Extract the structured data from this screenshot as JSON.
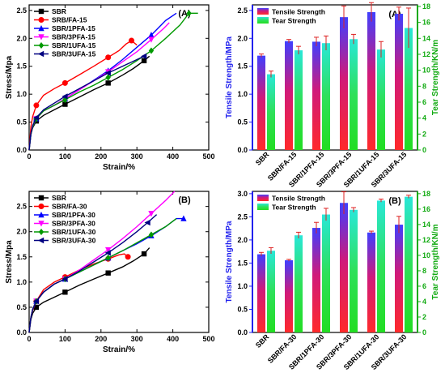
{
  "chart_data": [
    {
      "id": "A-stress-strain",
      "type": "line",
      "panel_label": "(A)",
      "xlabel": "Strain/%",
      "ylabel": "Stress/Mpa",
      "xlim": [
        0,
        500
      ],
      "ylim": [
        0,
        2.6
      ],
      "xticks": [
        "0",
        "100",
        "200",
        "300",
        "400",
        "500"
      ],
      "yticks": [
        "0.0",
        "0.5",
        "1.0",
        "1.5",
        "2.0",
        "2.5"
      ],
      "legend_position": "top-left",
      "series": [
        {
          "name": "SBR",
          "color": "#000000",
          "marker": "square",
          "x": [
            0,
            5,
            10,
            20,
            40,
            70,
            100,
            140,
            180,
            220,
            260,
            290,
            320,
            335
          ],
          "y": [
            0,
            0.28,
            0.4,
            0.52,
            0.62,
            0.72,
            0.82,
            0.95,
            1.08,
            1.2,
            1.34,
            1.46,
            1.6,
            1.68
          ]
        },
        {
          "name": "SRB/FA-15",
          "color": "#ff0000",
          "marker": "circle",
          "x": [
            0,
            5,
            10,
            20,
            40,
            70,
            100,
            140,
            180,
            220,
            250,
            270,
            285,
            300
          ],
          "y": [
            0,
            0.42,
            0.6,
            0.8,
            0.98,
            1.1,
            1.2,
            1.35,
            1.5,
            1.66,
            1.78,
            1.9,
            1.96,
            1.88
          ]
        },
        {
          "name": "SBR/1PFA-15",
          "color": "#0000ff",
          "marker": "triangle-up",
          "x": [
            0,
            5,
            10,
            20,
            40,
            70,
            100,
            140,
            180,
            220,
            260,
            300,
            340,
            380,
            410
          ],
          "y": [
            0,
            0.28,
            0.42,
            0.56,
            0.7,
            0.8,
            0.92,
            1.08,
            1.25,
            1.42,
            1.62,
            1.84,
            2.06,
            2.32,
            2.45
          ]
        },
        {
          "name": "SBR/3PFA-15",
          "color": "#ff00ff",
          "marker": "triangle-down",
          "x": [
            0,
            5,
            10,
            20,
            40,
            70,
            100,
            140,
            180,
            220,
            260,
            300,
            340,
            375,
            390
          ],
          "y": [
            0,
            0.28,
            0.42,
            0.56,
            0.7,
            0.8,
            0.92,
            1.08,
            1.24,
            1.4,
            1.58,
            1.76,
            1.98,
            2.18,
            2.28
          ]
        },
        {
          "name": "SBR/1UFA-15",
          "color": "#009900",
          "marker": "diamond",
          "x": [
            0,
            5,
            10,
            20,
            40,
            70,
            100,
            140,
            180,
            220,
            260,
            300,
            340,
            380,
            420,
            445,
            470
          ],
          "y": [
            0,
            0.28,
            0.42,
            0.56,
            0.7,
            0.8,
            0.9,
            1.04,
            1.16,
            1.3,
            1.44,
            1.6,
            1.78,
            2.0,
            2.24,
            2.45,
            2.45
          ]
        },
        {
          "name": "SBR/3UFA-15",
          "color": "#000080",
          "marker": "left-triangle",
          "x": [
            0,
            5,
            10,
            20,
            40,
            70,
            100,
            140,
            180,
            220,
            260,
            300,
            320
          ],
          "y": [
            0,
            0.3,
            0.44,
            0.58,
            0.72,
            0.84,
            0.96,
            1.1,
            1.24,
            1.38,
            1.5,
            1.62,
            1.68
          ]
        }
      ]
    },
    {
      "id": "A-bars",
      "type": "bar",
      "panel_label": "(A)",
      "categories": [
        "SBR",
        "SBR/FA-15",
        "SBR/1PFA-15",
        "SBR/3PFA-15",
        "SBR/1UFA-15",
        "SBR/3UFA-15"
      ],
      "ylabel": "Tensile Strength/MPa",
      "y2label": "Tear Strength/KN/m",
      "ylim": [
        0,
        2.6
      ],
      "y2lim": [
        0,
        18.2
      ],
      "yticks": [
        "0.0",
        "0.5",
        "1.0",
        "1.5",
        "2.0",
        "2.5"
      ],
      "y2ticks": [
        "0",
        "2",
        "4",
        "6",
        "8",
        "10",
        "12",
        "14",
        "16",
        "18"
      ],
      "legend_position": "top-left",
      "series": [
        {
          "name": "Tensile Strength",
          "axis": "left",
          "color": "#ff2a2a",
          "values": [
            1.69,
            1.95,
            1.94,
            2.38,
            2.47,
            2.44
          ],
          "errors": [
            0.03,
            0.03,
            0.08,
            0.2,
            0.17,
            0.12
          ]
        },
        {
          "name": "Tear Strength",
          "axis": "right",
          "color": "#22dd22",
          "values": [
            9.5,
            12.5,
            13.4,
            13.9,
            12.6,
            15.3
          ],
          "errors": [
            0.4,
            0.5,
            0.9,
            0.6,
            1.0,
            2.5
          ]
        }
      ]
    },
    {
      "id": "B-stress-strain",
      "type": "line",
      "panel_label": "(B)",
      "xlabel": "Strain/%",
      "ylabel": "Stress/Mpa",
      "xlim": [
        0,
        500
      ],
      "ylim": [
        0,
        2.8
      ],
      "xticks": [
        "0",
        "100",
        "200",
        "300",
        "400",
        "500"
      ],
      "yticks": [
        "0.0",
        "0.5",
        "1.0",
        "1.5",
        "2.0",
        "2.5"
      ],
      "legend_position": "top-left",
      "series": [
        {
          "name": "SBR",
          "color": "#000000",
          "marker": "square",
          "x": [
            0,
            5,
            10,
            20,
            40,
            70,
            100,
            140,
            180,
            220,
            260,
            290,
            320,
            335
          ],
          "y": [
            0,
            0.26,
            0.38,
            0.5,
            0.6,
            0.7,
            0.8,
            0.94,
            1.06,
            1.18,
            1.3,
            1.42,
            1.56,
            1.68
          ]
        },
        {
          "name": "SBR/FA-30",
          "color": "#ff0000",
          "marker": "circle",
          "x": [
            0,
            5,
            10,
            20,
            40,
            70,
            100,
            140,
            180,
            220,
            250,
            265,
            275
          ],
          "y": [
            0,
            0.3,
            0.44,
            0.62,
            0.85,
            1.0,
            1.1,
            1.24,
            1.36,
            1.46,
            1.54,
            1.56,
            1.5
          ]
        },
        {
          "name": "SBR/1PFA-30",
          "color": "#0000ff",
          "marker": "triangle-up",
          "x": [
            0,
            5,
            10,
            20,
            40,
            70,
            100,
            140,
            180,
            220,
            260,
            300,
            340,
            380,
            410,
            430
          ],
          "y": [
            0,
            0.3,
            0.46,
            0.62,
            0.8,
            0.96,
            1.06,
            1.2,
            1.34,
            1.48,
            1.62,
            1.76,
            1.92,
            2.1,
            2.26,
            2.26
          ]
        },
        {
          "name": "SBR/3PFA-30",
          "color": "#ff00ff",
          "marker": "triangle-down",
          "x": [
            0,
            5,
            10,
            20,
            40,
            70,
            100,
            140,
            180,
            220,
            260,
            300,
            340,
            380,
            405
          ],
          "y": [
            0,
            0.3,
            0.46,
            0.62,
            0.8,
            0.96,
            1.06,
            1.24,
            1.44,
            1.64,
            1.86,
            2.1,
            2.36,
            2.62,
            2.8
          ]
        },
        {
          "name": "SBR/1UFA-30",
          "color": "#009900",
          "marker": "diamond",
          "x": [
            0,
            5,
            10,
            20,
            40,
            70,
            100,
            140,
            180,
            220,
            260,
            300,
            340,
            380,
            410
          ],
          "y": [
            0,
            0.3,
            0.46,
            0.62,
            0.8,
            0.96,
            1.06,
            1.2,
            1.34,
            1.48,
            1.62,
            1.78,
            1.94,
            2.1,
            2.26
          ]
        },
        {
          "name": "SBR/3UFA-30",
          "color": "#000080",
          "marker": "left-triangle",
          "x": [
            0,
            5,
            10,
            20,
            40,
            70,
            100,
            140,
            180,
            220,
            260,
            300,
            330,
            355
          ],
          "y": [
            0,
            0.3,
            0.46,
            0.62,
            0.8,
            0.96,
            1.06,
            1.22,
            1.4,
            1.58,
            1.78,
            2.0,
            2.18,
            2.34
          ]
        }
      ]
    },
    {
      "id": "B-bars",
      "type": "bar",
      "panel_label": "(B)",
      "categories": [
        "SBR",
        "SBR/FA-30",
        "SBR/1PFA-30",
        "SBR/3PFA-30",
        "SBR/1UFA-30",
        "SBR/3UFA-30"
      ],
      "ylabel": "Tensile Strength/MPa",
      "y2label": "Tear Strength/KN/m",
      "ylim": [
        0,
        3.05
      ],
      "y2lim": [
        0,
        18.3
      ],
      "yticks": [
        "0.0",
        "0.5",
        "1.0",
        "1.5",
        "2.0",
        "2.5",
        "3.0"
      ],
      "y2ticks": [
        "0",
        "2",
        "4",
        "6",
        "8",
        "10",
        "12",
        "14",
        "16",
        "18"
      ],
      "legend_position": "top-left",
      "series": [
        {
          "name": "Tensile Strength",
          "axis": "left",
          "color": "#ff2a2a",
          "values": [
            1.69,
            1.56,
            2.26,
            2.8,
            2.16,
            2.33
          ],
          "errors": [
            0.04,
            0.02,
            0.12,
            0.24,
            0.03,
            0.18
          ]
        },
        {
          "name": "Tear Strength",
          "axis": "right",
          "color": "#22dd22",
          "values": [
            10.6,
            12.6,
            15.3,
            15.9,
            17.1,
            17.6
          ],
          "errors": [
            0.4,
            0.4,
            0.8,
            0.3,
            0.2,
            0.2
          ]
        }
      ]
    }
  ]
}
